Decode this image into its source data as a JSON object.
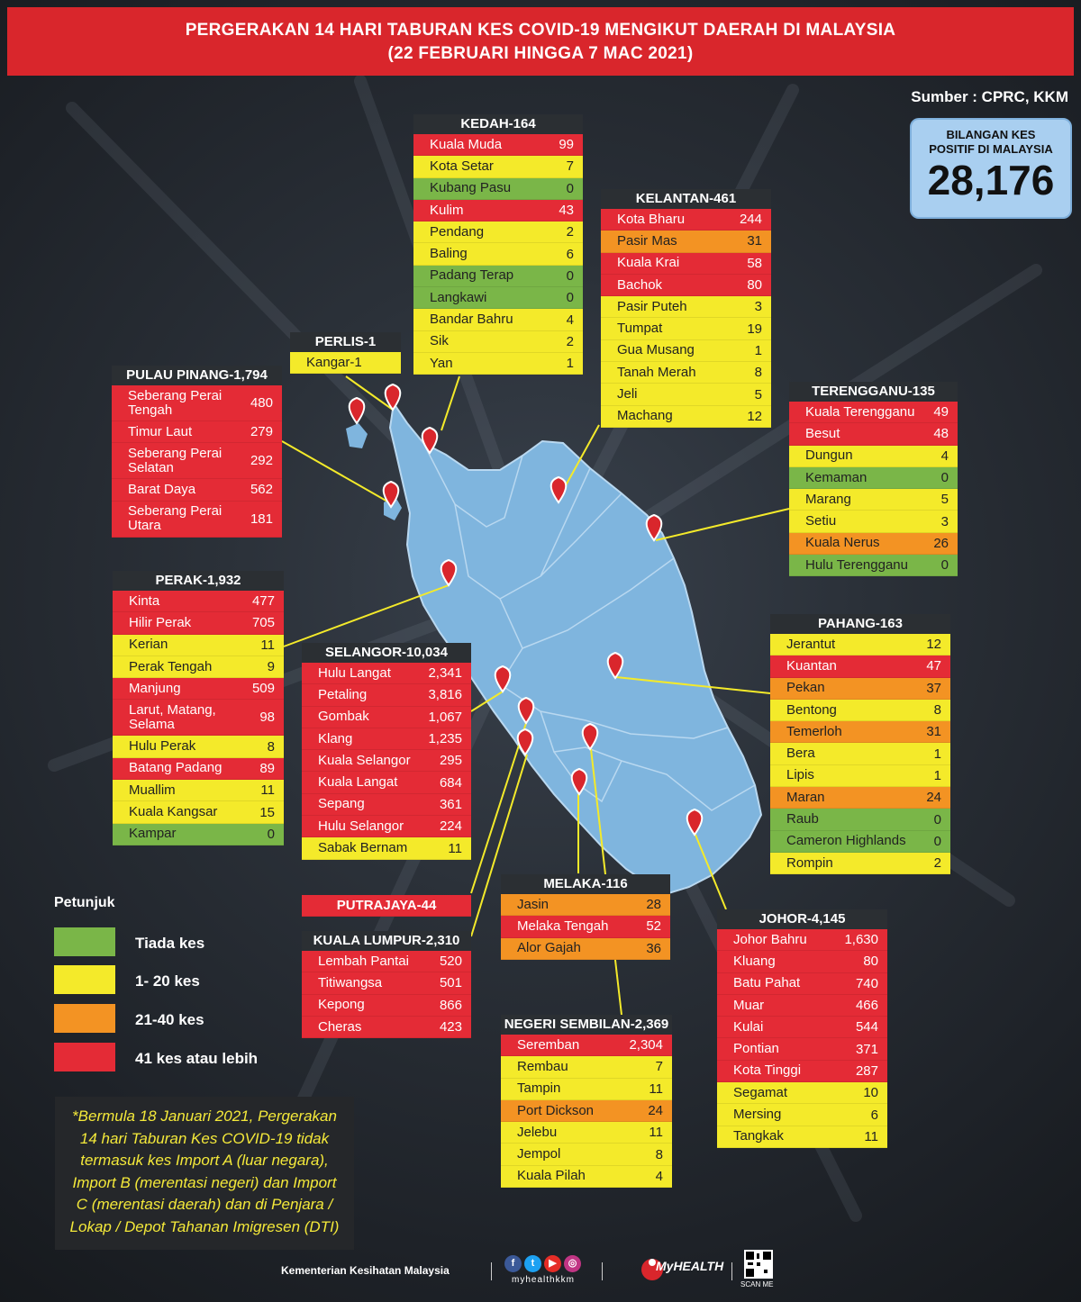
{
  "title": {
    "line1": "PERGERAKAN 14 HARI TABURAN KES COVID-19 MENGIKUT DAERAH DI MALAYSIA",
    "line2": "(22 FEBRUARI HINGGA 7 MAC 2021)"
  },
  "source": "Sumber : CPRC, KKM",
  "total": {
    "label1": "BILANGAN KES",
    "label2": "POSITIF DI MALAYSIA",
    "value": "28,176"
  },
  "colors": {
    "red": "#e42b36",
    "yellow": "#f4ea2a",
    "orange": "#f39323",
    "green": "#7ab648",
    "map": "#7fb5de",
    "pin": "#d9262c"
  },
  "states": {
    "kedah": {
      "header": "KEDAH-164",
      "rows": [
        {
          "name": "Kuala Muda",
          "value": "99",
          "color": "red"
        },
        {
          "name": "Kota Setar",
          "value": "7",
          "color": "yellow"
        },
        {
          "name": "Kubang Pasu",
          "value": "0",
          "color": "green"
        },
        {
          "name": "Kulim",
          "value": "43",
          "color": "red"
        },
        {
          "name": "Pendang",
          "value": "2",
          "color": "yellow"
        },
        {
          "name": "Baling",
          "value": "6",
          "color": "yellow"
        },
        {
          "name": "Padang Terap",
          "value": "0",
          "color": "green"
        },
        {
          "name": "Langkawi",
          "value": "0",
          "color": "green"
        },
        {
          "name": "Bandar Bahru",
          "value": "4",
          "color": "yellow"
        },
        {
          "name": "Sik",
          "value": "2",
          "color": "yellow"
        },
        {
          "name": "Yan",
          "value": "1",
          "color": "yellow"
        }
      ]
    },
    "kelantan": {
      "header": "KELANTAN-461",
      "rows": [
        {
          "name": "Kota Bharu",
          "value": "244",
          "color": "red"
        },
        {
          "name": "Pasir Mas",
          "value": "31",
          "color": "orange"
        },
        {
          "name": "Kuala Krai",
          "value": "58",
          "color": "red"
        },
        {
          "name": "Bachok",
          "value": "80",
          "color": "red"
        },
        {
          "name": "Pasir Puteh",
          "value": "3",
          "color": "yellow"
        },
        {
          "name": "Tumpat",
          "value": "19",
          "color": "yellow"
        },
        {
          "name": "Gua Musang",
          "value": "1",
          "color": "yellow"
        },
        {
          "name": "Tanah Merah",
          "value": "8",
          "color": "yellow"
        },
        {
          "name": "Jeli",
          "value": "5",
          "color": "yellow"
        },
        {
          "name": "Machang",
          "value": "12",
          "color": "yellow"
        }
      ]
    },
    "perlis": {
      "header": "PERLIS-1",
      "rows": [
        {
          "name": "Kangar-1",
          "value": "",
          "color": "yellow"
        }
      ]
    },
    "pulau_pinang": {
      "header": "PULAU PINANG-1,794",
      "rows": [
        {
          "name": "Seberang Perai Tengah",
          "value": "480",
          "color": "red"
        },
        {
          "name": "Timur Laut",
          "value": "279",
          "color": "red"
        },
        {
          "name": "Seberang Perai Selatan",
          "value": "292",
          "color": "red"
        },
        {
          "name": "Barat Daya",
          "value": "562",
          "color": "red"
        },
        {
          "name": "Seberang Perai Utara",
          "value": "181",
          "color": "red"
        }
      ]
    },
    "terengganu": {
      "header": "TERENGGANU-135",
      "rows": [
        {
          "name": "Kuala Terengganu",
          "value": "49",
          "color": "red"
        },
        {
          "name": "Besut",
          "value": "48",
          "color": "red"
        },
        {
          "name": "Dungun",
          "value": "4",
          "color": "yellow"
        },
        {
          "name": "Kemaman",
          "value": "0",
          "color": "green"
        },
        {
          "name": "Marang",
          "value": "5",
          "color": "yellow"
        },
        {
          "name": "Setiu",
          "value": "3",
          "color": "yellow"
        },
        {
          "name": "Kuala Nerus",
          "value": "26",
          "color": "orange"
        },
        {
          "name": "Hulu Terengganu",
          "value": "0",
          "color": "green"
        }
      ]
    },
    "perak": {
      "header": "PERAK-1,932",
      "rows": [
        {
          "name": "Kinta",
          "value": "477",
          "color": "red"
        },
        {
          "name": "Hilir Perak",
          "value": "705",
          "color": "red"
        },
        {
          "name": "Kerian",
          "value": "11",
          "color": "yellow"
        },
        {
          "name": "Perak Tengah",
          "value": "9",
          "color": "yellow"
        },
        {
          "name": "Manjung",
          "value": "509",
          "color": "red"
        },
        {
          "name": "Larut, Matang, Selama",
          "value": "98",
          "color": "red"
        },
        {
          "name": "Hulu Perak",
          "value": "8",
          "color": "yellow"
        },
        {
          "name": "Batang Padang",
          "value": "89",
          "color": "red"
        },
        {
          "name": "Muallim",
          "value": "11",
          "color": "yellow"
        },
        {
          "name": "Kuala Kangsar",
          "value": "15",
          "color": "yellow"
        },
        {
          "name": "Kampar",
          "value": "0",
          "color": "green"
        }
      ]
    },
    "selangor": {
      "header": "SELANGOR-10,034",
      "rows": [
        {
          "name": "Hulu Langat",
          "value": "2,341",
          "color": "red"
        },
        {
          "name": "Petaling",
          "value": "3,816",
          "color": "red"
        },
        {
          "name": "Gombak",
          "value": "1,067",
          "color": "red"
        },
        {
          "name": "Klang",
          "value": "1,235",
          "color": "red"
        },
        {
          "name": "Kuala Selangor",
          "value": "295",
          "color": "red"
        },
        {
          "name": "Kuala Langat",
          "value": "684",
          "color": "red"
        },
        {
          "name": "Sepang",
          "value": "361",
          "color": "red"
        },
        {
          "name": "Hulu Selangor",
          "value": "224",
          "color": "red"
        },
        {
          "name": "Sabak Bernam",
          "value": "11",
          "color": "yellow"
        }
      ]
    },
    "pahang": {
      "header": "PAHANG-163",
      "rows": [
        {
          "name": "Jerantut",
          "value": "12",
          "color": "yellow"
        },
        {
          "name": "Kuantan",
          "value": "47",
          "color": "red"
        },
        {
          "name": "Pekan",
          "value": "37",
          "color": "orange"
        },
        {
          "name": "Bentong",
          "value": "8",
          "color": "yellow"
        },
        {
          "name": "Temerloh",
          "value": "31",
          "color": "orange"
        },
        {
          "name": "Bera",
          "value": "1",
          "color": "yellow"
        },
        {
          "name": "Lipis",
          "value": "1",
          "color": "yellow"
        },
        {
          "name": "Maran",
          "value": "24",
          "color": "orange"
        },
        {
          "name": "Raub",
          "value": "0",
          "color": "green"
        },
        {
          "name": "Cameron Highlands",
          "value": "0",
          "color": "green"
        },
        {
          "name": "Rompin",
          "value": "2",
          "color": "yellow"
        }
      ]
    },
    "putrajaya": {
      "header": "PUTRAJAYA-44"
    },
    "kuala_lumpur": {
      "header": "KUALA LUMPUR-2,310",
      "rows": [
        {
          "name": "Lembah Pantai",
          "value": "520",
          "color": "red"
        },
        {
          "name": "Titiwangsa",
          "value": "501",
          "color": "red"
        },
        {
          "name": "Kepong",
          "value": "866",
          "color": "red"
        },
        {
          "name": "Cheras",
          "value": "423",
          "color": "red"
        }
      ]
    },
    "melaka": {
      "header": "MELAKA-116",
      "rows": [
        {
          "name": "Jasin",
          "value": "28",
          "color": "orange"
        },
        {
          "name": "Melaka Tengah",
          "value": "52",
          "color": "red"
        },
        {
          "name": "Alor Gajah",
          "value": "36",
          "color": "orange"
        }
      ]
    },
    "negeri_sembilan": {
      "header": "NEGERI SEMBILAN-2,369",
      "rows": [
        {
          "name": "Seremban",
          "value": "2,304",
          "color": "red"
        },
        {
          "name": "Rembau",
          "value": "7",
          "color": "yellow"
        },
        {
          "name": "Tampin",
          "value": "11",
          "color": "yellow"
        },
        {
          "name": "Port Dickson",
          "value": "24",
          "color": "orange"
        },
        {
          "name": "Jelebu",
          "value": "11",
          "color": "yellow"
        },
        {
          "name": "Jempol",
          "value": "8",
          "color": "yellow"
        },
        {
          "name": "Kuala Pilah",
          "value": "4",
          "color": "yellow"
        }
      ]
    },
    "johor": {
      "header": "JOHOR-4,145",
      "rows": [
        {
          "name": "Johor Bahru",
          "value": "1,630",
          "color": "red"
        },
        {
          "name": "Kluang",
          "value": "80",
          "color": "red"
        },
        {
          "name": "Batu Pahat",
          "value": "740",
          "color": "red"
        },
        {
          "name": "Muar",
          "value": "466",
          "color": "red"
        },
        {
          "name": "Kulai",
          "value": "544",
          "color": "red"
        },
        {
          "name": "Pontian",
          "value": "371",
          "color": "red"
        },
        {
          "name": "Kota Tinggi",
          "value": "287",
          "color": "red"
        },
        {
          "name": "Segamat",
          "value": "10",
          "color": "yellow"
        },
        {
          "name": "Mersing",
          "value": "6",
          "color": "yellow"
        },
        {
          "name": "Tangkak",
          "value": "11",
          "color": "yellow"
        }
      ]
    }
  },
  "legend": {
    "title": "Petunjuk",
    "items": [
      {
        "label": "Tiada kes",
        "color": "green"
      },
      {
        "label": "1- 20 kes",
        "color": "yellow"
      },
      {
        "label": "21-40 kes",
        "color": "orange"
      },
      {
        "label": "41 kes atau lebih",
        "color": "red"
      }
    ]
  },
  "note": "*Bermula 18 Januari 2021, Pergerakan 14 hari Taburan Kes COVID-19 tidak termasuk kes Import A (luar negara), Import B (merentasi negeri) dan Import C (merentasi daerah) dan di Penjara / Lokap / Depot Tahanan Imigresen (DTI)",
  "footer": {
    "ministry": "Kementerian Kesihatan Malaysia",
    "handle": "myhealthkkm",
    "logo_text": "MyHEALTH",
    "qr_label": "SCAN ME"
  }
}
